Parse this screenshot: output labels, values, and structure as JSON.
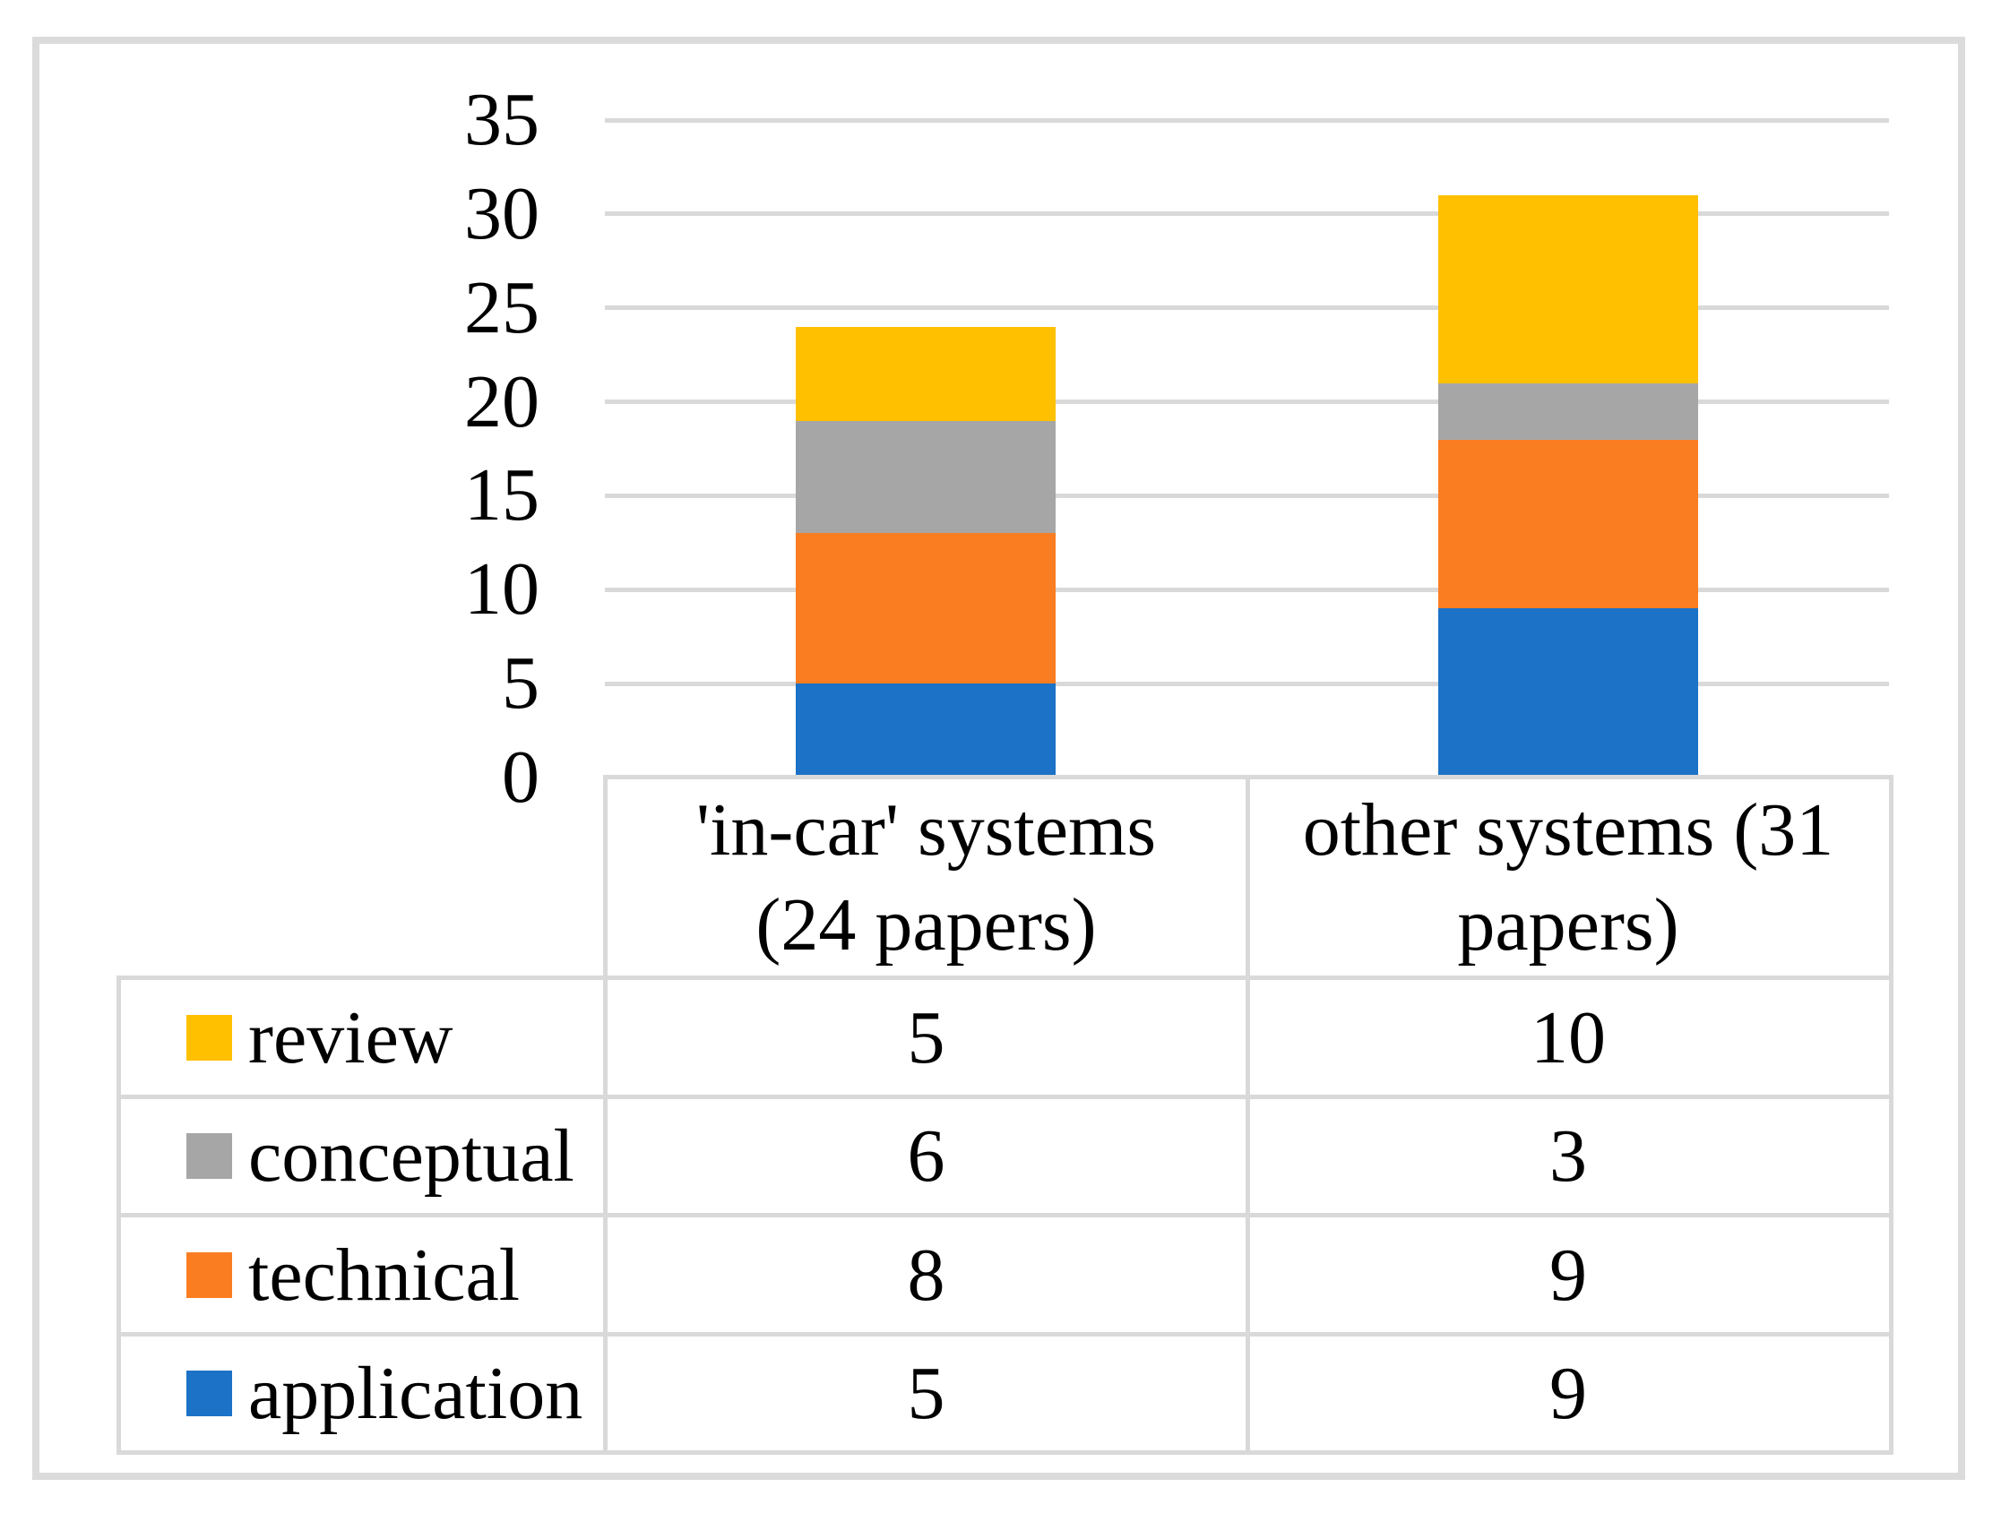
{
  "chart_data": {
    "type": "bar",
    "stacked": true,
    "title": "",
    "xlabel": "",
    "ylabel": "",
    "categories": [
      "'in-car' systems (24 papers)",
      "other systems (31 papers)"
    ],
    "series": [
      {
        "name": "application",
        "color": "#1B72C6",
        "values": [
          5,
          9
        ]
      },
      {
        "name": "technical",
        "color": "#FA7D22",
        "values": [
          8,
          9
        ]
      },
      {
        "name": "conceptual",
        "color": "#A6A6A6",
        "values": [
          6,
          3
        ]
      },
      {
        "name": "review",
        "color": "#FFC000",
        "values": [
          5,
          10
        ]
      }
    ],
    "stack_order_bottom_to_top": [
      "application",
      "technical",
      "conceptual",
      "review"
    ],
    "ylim": [
      0,
      35
    ],
    "yticks": [
      "0",
      "5",
      "10",
      "15",
      "20",
      "25",
      "30",
      "35"
    ],
    "grid": true,
    "gridline_color": "#D9D9D9",
    "legend_position": "data-table-left-column",
    "totals": [
      24,
      31
    ]
  },
  "table": {
    "border_color": "#D9D9D9",
    "col_headers": [
      {
        "lines": [
          "'in-car' systems",
          "(24 papers)"
        ]
      },
      {
        "lines": [
          "other systems (31",
          "papers)"
        ]
      }
    ],
    "rows": [
      {
        "label": "review",
        "swatch": "#FFC000",
        "values": [
          "5",
          "10"
        ]
      },
      {
        "label": "conceptual",
        "swatch": "#A6A6A6",
        "values": [
          "6",
          "3"
        ]
      },
      {
        "label": "technical",
        "swatch": "#FA7D22",
        "values": [
          "8",
          "9"
        ]
      },
      {
        "label": "application",
        "swatch": "#1B72C6",
        "values": [
          "5",
          "9"
        ]
      }
    ]
  }
}
